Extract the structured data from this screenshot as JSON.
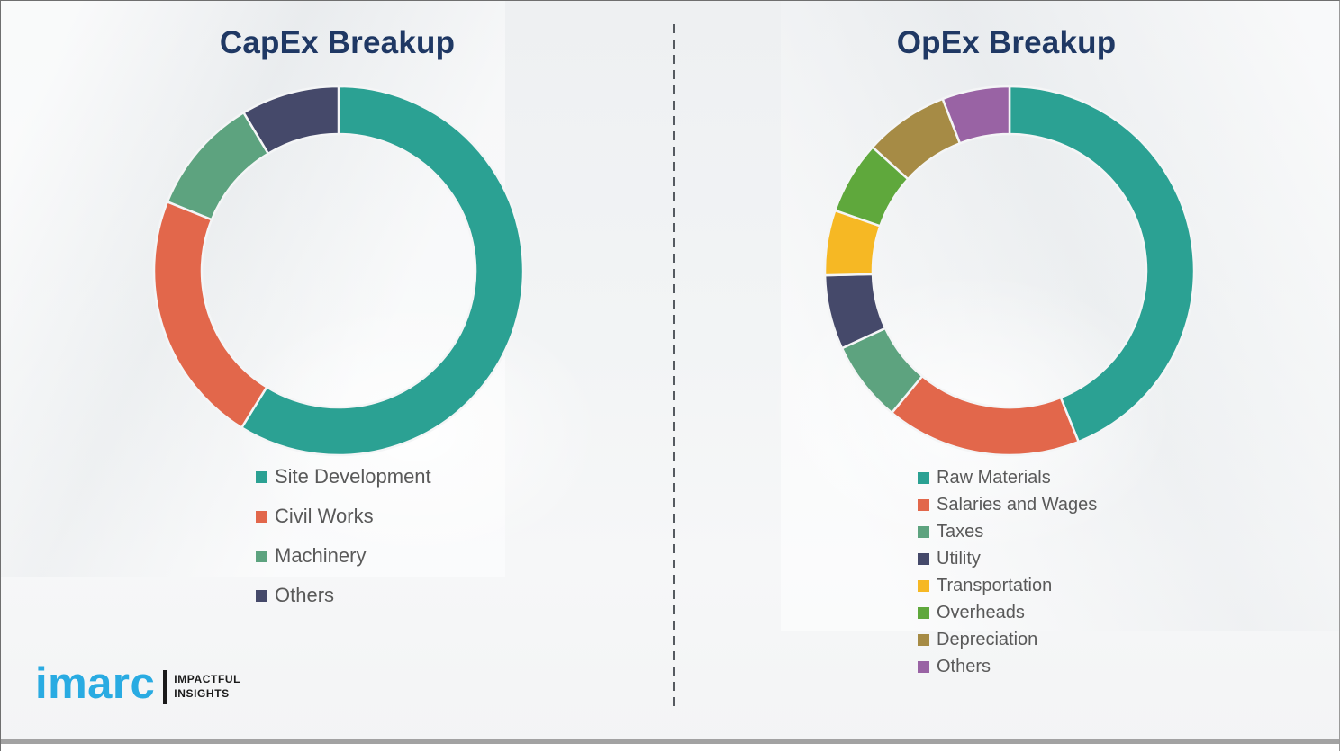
{
  "chart_data": [
    {
      "type": "pie",
      "subtype": "donut",
      "title": "CapEx Breakup",
      "categories": [
        "Site Development",
        "Civil Works",
        "Machinery",
        "Others"
      ],
      "values": [
        58.8,
        22.3,
        10.3,
        8.6
      ],
      "colors": [
        "#2ba193",
        "#e2674b",
        "#5da37f",
        "#45496a"
      ],
      "start_angle_deg": 0,
      "direction": "clockwise",
      "inner_radius_ratio": 0.74,
      "legend_position": "below"
    },
    {
      "type": "pie",
      "subtype": "donut",
      "title": "OpEx Breakup",
      "categories": [
        "Raw Materials",
        "Salaries and Wages",
        "Taxes",
        "Utility",
        "Transportation",
        "Overheads",
        "Depreciation",
        "Others"
      ],
      "values": [
        43.9,
        17.1,
        7.1,
        6.5,
        5.7,
        6.4,
        7.4,
        5.9
      ],
      "colors": [
        "#2ba193",
        "#e2674b",
        "#5da37f",
        "#45496a",
        "#f6b824",
        "#5fa83c",
        "#a68b45",
        "#9963a4"
      ],
      "start_angle_deg": 0,
      "direction": "clockwise",
      "inner_radius_ratio": 0.74,
      "legend_position": "below"
    }
  ],
  "branding": {
    "logo_text": "imarc",
    "tagline": [
      "IMPACTFUL",
      "INSIGHTS"
    ],
    "logo_color": "#29abe2"
  },
  "divider": {
    "style": "vertical-dashed",
    "color": "#555a60"
  },
  "title_color": "#1f3864",
  "legend_text_color": "#595959"
}
